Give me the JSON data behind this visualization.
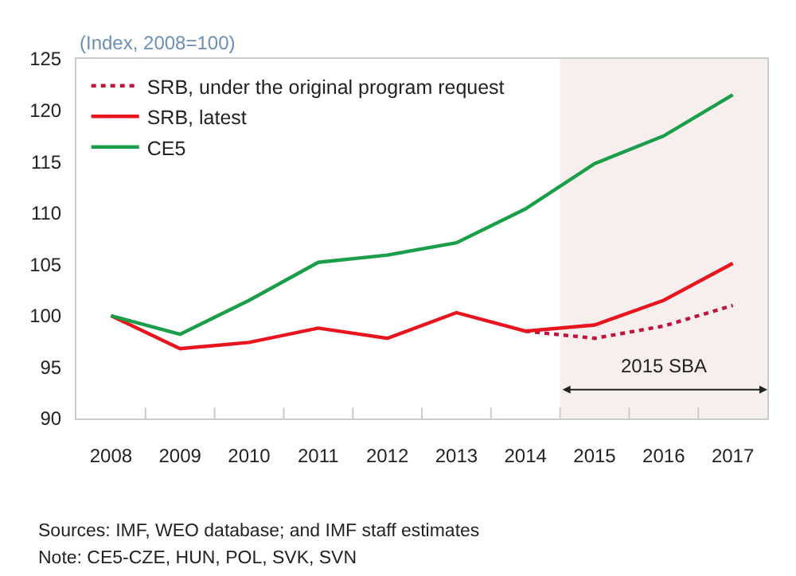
{
  "chart_data": {
    "type": "line",
    "ylabel": "(Index, 2008=100)",
    "x": [
      2008,
      2009,
      2010,
      2011,
      2012,
      2013,
      2014,
      2015,
      2016,
      2017
    ],
    "series": [
      {
        "name": "SRB, under the original program request",
        "color": "#c0143c",
        "line_style": "dotted",
        "values": [
          null,
          null,
          null,
          null,
          null,
          null,
          98.5,
          97.8,
          99.0,
          101.0
        ]
      },
      {
        "name": "SRB, latest",
        "color": "#e8141e",
        "line_style": "solid",
        "values": [
          100,
          96.8,
          97.4,
          98.8,
          97.8,
          100.3,
          98.5,
          99.1,
          101.5,
          105.1
        ]
      },
      {
        "name": "CE5",
        "color": "#1a9e4a",
        "line_style": "solid",
        "values": [
          100,
          98.2,
          101.5,
          105.2,
          105.9,
          107.1,
          110.4,
          114.8,
          117.5,
          121.5
        ]
      }
    ],
    "xlim": [
      2007.5,
      2017.5
    ],
    "xticks": [
      2008,
      2009,
      2010,
      2011,
      2012,
      2013,
      2014,
      2015,
      2016,
      2017
    ],
    "ylim": [
      90,
      125
    ],
    "yticks": [
      90,
      95,
      100,
      105,
      110,
      115,
      120,
      125
    ],
    "bands": [
      {
        "axis": "x",
        "from": 2014.5,
        "to": 2017.5,
        "label": "2015 SBA",
        "color": "#f7eeee"
      }
    ],
    "annotations": [
      "Sources: IMF, WEO database; and IMF staff estimates",
      "Note: CE5-CZE, HUN, POL, SVK, SVN"
    ],
    "grid": false,
    "legend": "top left",
    "marker": "none"
  }
}
